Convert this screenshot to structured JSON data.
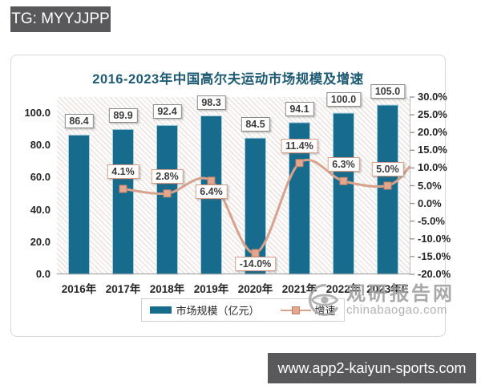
{
  "overlays": {
    "tg_badge": "TG: MYYJJPP",
    "url_badge": "www.app2-kaiyun-sports.com"
  },
  "chart_data": {
    "type": "bar",
    "subtype": "combo-bar-line",
    "title": "2016-2023年中国高尔夫运动市场规模及增速",
    "categories": [
      "2016年",
      "2017年",
      "2018年",
      "2019年",
      "2020年",
      "2021年",
      "2022年",
      "2023年E"
    ],
    "series": [
      {
        "name": "市场规模（亿元）",
        "type": "bar",
        "axis": "left",
        "color": "#176b8d",
        "values": [
          86.4,
          89.9,
          92.4,
          98.3,
          84.5,
          94.1,
          100.0,
          105.0
        ],
        "labels": [
          "86.4",
          "89.9",
          "92.4",
          "98.3",
          "84.5",
          "94.1",
          "100.0",
          "105.0"
        ]
      },
      {
        "name": "增速",
        "type": "line",
        "axis": "right",
        "color": "#d8a28d",
        "marker_fill": "#e3a78f",
        "marker_stroke": "#c08268",
        "values": [
          null,
          4.1,
          2.8,
          6.4,
          -14.0,
          11.4,
          6.3,
          5.0
        ],
        "labels": [
          null,
          "4.1%",
          "2.8%",
          "6.4%",
          "-14.0%",
          "11.4%",
          "6.3%",
          "5.0%"
        ],
        "label_side": [
          null,
          "above",
          "above",
          "below",
          "below",
          "above",
          "above",
          "above"
        ]
      }
    ],
    "left_axis": {
      "min": 0,
      "max": 110,
      "tick_values": [
        100,
        80,
        60,
        40,
        20,
        0
      ],
      "tick_labels": [
        "100.0",
        "80.0",
        "60.0",
        "40.0",
        "20.0",
        "0.0"
      ]
    },
    "right_axis": {
      "min": -20,
      "max": 30,
      "tick_values": [
        30,
        25,
        20,
        15,
        10,
        5,
        0,
        -5,
        -10,
        -15,
        -20
      ],
      "tick_labels": [
        "30.0%",
        "25.0%",
        "20.0%",
        "15.0%",
        "10.0%",
        "5.0%",
        "0.0%",
        "-5.0%",
        "-10.0%",
        "-15.0%",
        "-20.0%"
      ]
    },
    "legend_position": "bottom",
    "background": "hatched"
  },
  "legend": {
    "items": [
      {
        "label": "市场规模（亿元）",
        "swatch": "bar"
      },
      {
        "label": "增速",
        "swatch": "line-marker"
      }
    ]
  },
  "watermark": {
    "name": "观研报告网",
    "domain": "chinabaogao.com"
  }
}
